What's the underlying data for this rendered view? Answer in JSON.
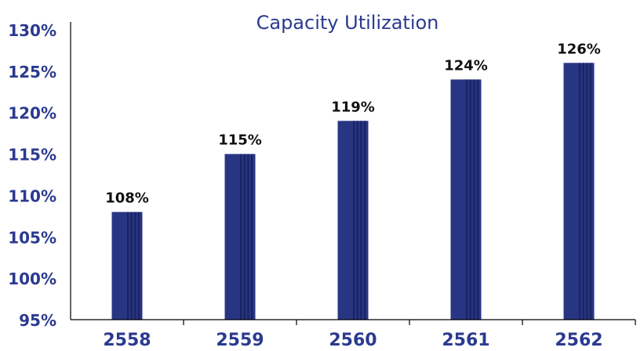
{
  "chart_data": {
    "type": "bar",
    "title": "Capacity Utilization",
    "categories": [
      "2558",
      "2559",
      "2560",
      "2561",
      "2562"
    ],
    "values": [
      108,
      115,
      119,
      124,
      126
    ],
    "data_labels": [
      "108%",
      "115%",
      "119%",
      "124%",
      "126%"
    ],
    "ylim": [
      95,
      130
    ],
    "yticks": [
      95,
      100,
      105,
      110,
      115,
      120,
      125,
      130
    ],
    "ytick_labels": [
      "95%",
      "100%",
      "105%",
      "110%",
      "115%",
      "120%",
      "125%",
      "130%"
    ],
    "xlabel": "",
    "ylabel": "",
    "grid": false,
    "legend": "none",
    "colors": {
      "bar": "#283583",
      "bar_stripe": "#1a2260",
      "title": "#2b3a8f",
      "tick_label": "#2b3a8f",
      "data_label": "#111111",
      "axis": "#000000"
    }
  }
}
